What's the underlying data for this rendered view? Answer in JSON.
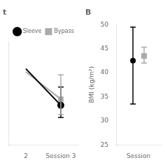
{
  "chart_data": [
    {
      "type": "line",
      "title": "t",
      "categories": [
        "2",
        "Session 3"
      ],
      "series": [
        {
          "name": "Sleeve",
          "color": "#000000",
          "marker": "circle",
          "values": [
            39.5,
            33.5
          ],
          "err_lo": [
            null,
            2.0
          ],
          "err_hi": [
            null,
            3.0
          ]
        },
        {
          "name": "Bypass",
          "color": "#aaaaaa",
          "marker": "square",
          "values": [
            39.0,
            34.5
          ],
          "err_lo": [
            null,
            2.5
          ],
          "err_hi": [
            null,
            4.0
          ]
        }
      ],
      "ylim": [
        27,
        44
      ],
      "grid": false,
      "legend": "upper right",
      "tick_labels": "x"
    },
    {
      "type": "errorbar",
      "title": "B",
      "categories": [
        "Session"
      ],
      "series": [
        {
          "name": "Sleeve",
          "color": "#000000",
          "marker": "circle",
          "values": [
            42.5
          ],
          "err_lo": [
            9.0
          ],
          "err_hi": [
            7.0
          ]
        },
        {
          "name": "Bypass",
          "color": "#aaaaaa",
          "marker": "square",
          "values": [
            43.5
          ],
          "err_lo": [
            1.5
          ],
          "err_hi": [
            1.8
          ]
        }
      ],
      "y_label": "BMI (kg/m²)",
      "ylim": [
        25,
        50
      ],
      "yticks": [
        25,
        30,
        35,
        40,
        45,
        50
      ],
      "grid": false
    }
  ]
}
